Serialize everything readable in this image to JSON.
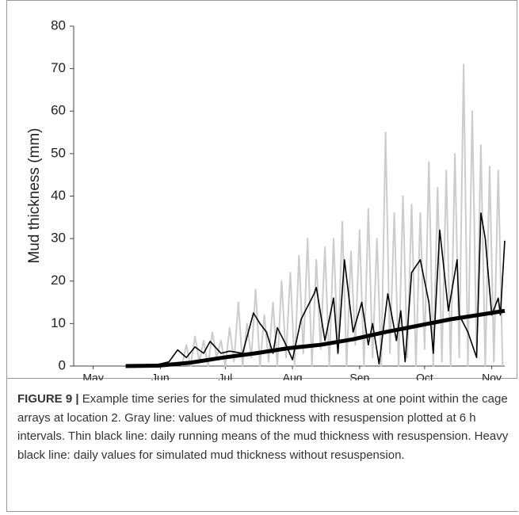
{
  "chart_data": {
    "type": "line",
    "y_label": "Mud thickness (mm)",
    "ylim": [
      0,
      80
    ],
    "yticks": [
      0,
      10,
      20,
      30,
      40,
      50,
      60,
      70,
      80
    ],
    "xlim": [
      6,
      205
    ],
    "xticks": [
      {
        "value": 15,
        "label": "May"
      },
      {
        "value": 46,
        "label": "Jun"
      },
      {
        "value": 76,
        "label": "Jul"
      },
      {
        "value": 107,
        "label": "Aug"
      },
      {
        "value": 138,
        "label": "Sep"
      },
      {
        "value": 168,
        "label": "Oct"
      },
      {
        "value": 199,
        "label": "Nov"
      }
    ],
    "grid": false,
    "series": [
      {
        "color": "#cccccc",
        "width": 2,
        "x": [
          56,
          58,
          60,
          62,
          64,
          66,
          68,
          70,
          72,
          74,
          76,
          78,
          80,
          82,
          84,
          86,
          88,
          90,
          92,
          94,
          96,
          98,
          100,
          102,
          104,
          106,
          108,
          110,
          112,
          114,
          116,
          118,
          120,
          122,
          124,
          126,
          128,
          130,
          132,
          134,
          136,
          138,
          140,
          142,
          144,
          146,
          148,
          150,
          152,
          154,
          156,
          158,
          160,
          162,
          164,
          166,
          168,
          170,
          172,
          174,
          176,
          178,
          180,
          182,
          184,
          186,
          188,
          190,
          192,
          194,
          196,
          198,
          200,
          202,
          204
        ],
        "values": [
          0,
          5,
          0,
          7,
          1,
          6,
          0,
          8,
          2,
          6,
          0,
          9,
          1,
          15,
          0,
          10,
          2,
          18,
          0,
          12,
          1,
          15,
          0,
          20,
          2,
          22,
          0,
          26,
          3,
          30,
          0,
          25,
          4,
          28,
          0,
          30,
          3,
          34,
          0,
          27,
          5,
          32,
          0,
          37,
          2,
          30,
          0,
          55,
          3,
          36,
          0,
          40,
          2,
          38,
          0,
          36,
          4,
          48,
          0,
          42,
          1,
          46,
          0,
          50,
          2,
          71,
          0,
          60,
          3,
          52,
          0,
          47,
          1,
          46,
          0
        ]
      },
      {
        "color": "#000000",
        "width": 1.6,
        "x": [
          30,
          40,
          46,
          50,
          54,
          58,
          62,
          66,
          69,
          74,
          78,
          84,
          89,
          92,
          95,
          98,
          100,
          104,
          107,
          111,
          114,
          117,
          118,
          122,
          126,
          128,
          131,
          135,
          139,
          142,
          144,
          147,
          151,
          155,
          157,
          159,
          162,
          166,
          170,
          172,
          175,
          179,
          183,
          184,
          188,
          192,
          194,
          196,
          199,
          202,
          203,
          205
        ],
        "values": [
          0,
          0,
          0.5,
          1,
          3.8,
          2,
          4.5,
          3,
          5.8,
          3,
          3.5,
          3,
          12.5,
          10,
          8,
          3,
          9,
          5,
          1.5,
          11,
          14,
          17,
          18.5,
          6,
          16,
          3,
          25,
          8,
          15,
          5,
          10,
          0.5,
          17,
          6,
          13,
          1,
          22,
          25,
          15,
          3,
          32,
          13,
          25,
          12,
          8,
          2,
          36,
          30,
          12,
          16,
          12,
          29.5
        ]
      },
      {
        "color": "#000000",
        "width": 5,
        "x": [
          30,
          45,
          60,
          75,
          90,
          105,
          120,
          135,
          150,
          165,
          180,
          195,
          205
        ],
        "values": [
          0,
          0.1,
          0.8,
          2,
          3,
          4.2,
          5,
          6.3,
          8,
          9.5,
          11,
          12.2,
          13
        ]
      }
    ]
  },
  "caption": {
    "label": "FIGURE 9 |",
    "text": "Example time series for the simulated mud thickness at one point within the cage arrays at location 2. Gray line: values of mud thickness with resuspension plotted at 6 h intervals. Thin black line: daily running means of the mud thickness with resuspension. Heavy black line: daily values for simulated mud thickness without resuspension."
  }
}
